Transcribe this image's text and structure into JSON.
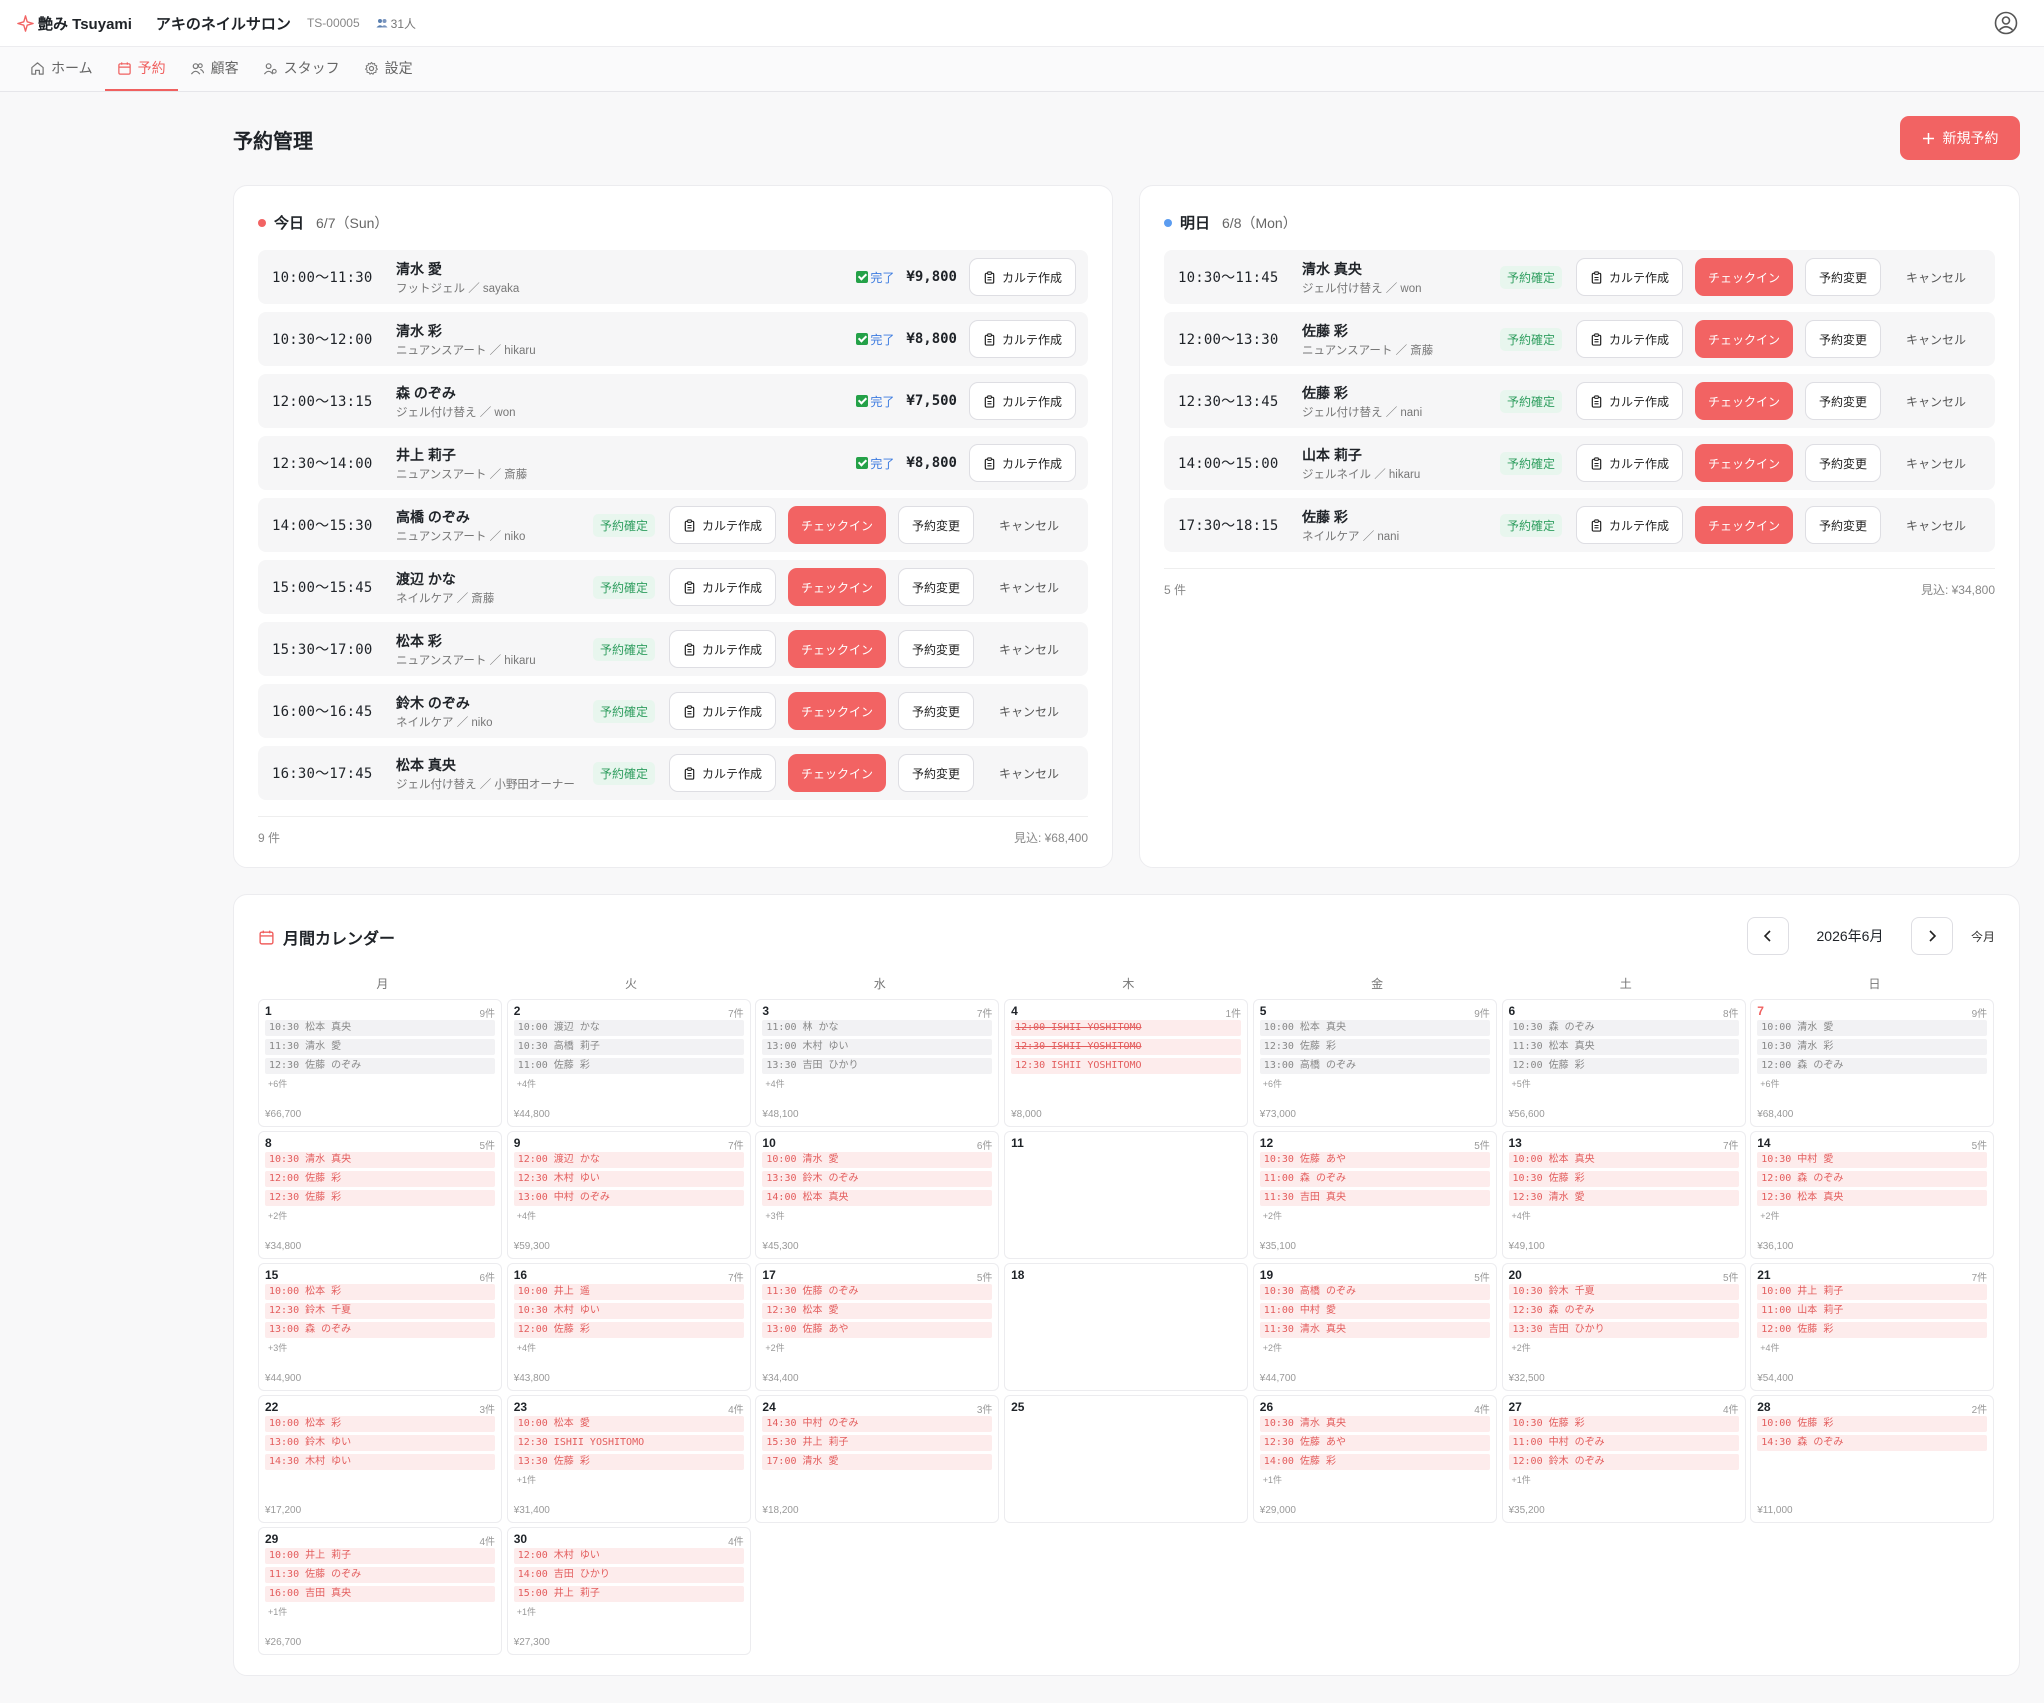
{
  "header": {
    "brand": "艶み Tsuyami",
    "shop_name": "アキのネイルサロン",
    "shop_id": "TS-00005",
    "staff_count": "31人"
  },
  "nav": {
    "tabs": [
      {
        "label": "ホーム",
        "icon": "home-icon"
      },
      {
        "label": "予約",
        "icon": "calendar-icon"
      },
      {
        "label": "顧客",
        "icon": "users-icon"
      },
      {
        "label": "スタッフ",
        "icon": "staff-icon"
      },
      {
        "label": "設定",
        "icon": "gear-icon"
      }
    ],
    "active": "予約"
  },
  "page": {
    "title": "予約管理",
    "new_button": "新規予約"
  },
  "labels": {
    "status_confirmed": "予約確定",
    "status_done": "完了",
    "karte": "カルテ作成",
    "checkin": "チェックイン",
    "change": "予約変更",
    "cancel": "キャンセル"
  },
  "today": {
    "label": "今日",
    "date": "6/7（Sun）",
    "count": "9 件",
    "forecast": "見込: ¥68,400",
    "rows": [
      {
        "time": "10:00〜11:30",
        "name": "清水 愛",
        "menu": "フットジェル ／ sayaka",
        "done": true,
        "price": "¥9,800"
      },
      {
        "time": "10:30〜12:00",
        "name": "清水 彩",
        "menu": "ニュアンスアート ／ hikaru",
        "done": true,
        "price": "¥8,800"
      },
      {
        "time": "12:00〜13:15",
        "name": "森 のぞみ",
        "menu": "ジェル付け替え ／ won",
        "done": true,
        "price": "¥7,500"
      },
      {
        "time": "12:30〜14:00",
        "name": "井上 莉子",
        "menu": "ニュアンスアート ／ 斎藤",
        "done": true,
        "price": "¥8,800"
      },
      {
        "time": "14:00〜15:30",
        "name": "高橋 のぞみ",
        "menu": "ニュアンスアート ／ niko",
        "done": false
      },
      {
        "time": "15:00〜15:45",
        "name": "渡辺 かな",
        "menu": "ネイルケア ／ 斎藤",
        "done": false
      },
      {
        "time": "15:30〜17:00",
        "name": "松本 彩",
        "menu": "ニュアンスアート ／ hikaru",
        "done": false
      },
      {
        "time": "16:00〜16:45",
        "name": "鈴木 のぞみ",
        "menu": "ネイルケア ／ niko",
        "done": false
      },
      {
        "time": "16:30〜17:45",
        "name": "松本 真央",
        "menu": "ジェル付け替え ／ 小野田オーナー",
        "done": false
      }
    ]
  },
  "tomorrow": {
    "label": "明日",
    "date": "6/8（Mon）",
    "count": "5 件",
    "forecast": "見込: ¥34,800",
    "rows": [
      {
        "time": "10:30〜11:45",
        "name": "清水 真央",
        "menu": "ジェル付け替え ／ won"
      },
      {
        "time": "12:00〜13:30",
        "name": "佐藤 彩",
        "menu": "ニュアンスアート ／ 斎藤"
      },
      {
        "time": "12:30〜13:45",
        "name": "佐藤 彩",
        "menu": "ジェル付け替え ／ nani"
      },
      {
        "time": "14:00〜15:00",
        "name": "山本 莉子",
        "menu": "ジェルネイル ／ hikaru"
      },
      {
        "time": "17:30〜18:15",
        "name": "佐藤 彩",
        "menu": "ネイルケア ／ nani"
      }
    ]
  },
  "calendar": {
    "title": "月間カレンダー",
    "month": "2026年6月",
    "today_label": "今月",
    "weekdays": [
      "月",
      "火",
      "水",
      "木",
      "金",
      "土",
      "日"
    ],
    "days": [
      {
        "d": "1",
        "c": "9件",
        "ev": [
          "10:30 松本 真央",
          "11:30 清水 愛",
          "12:30 佐藤 のぞみ"
        ],
        "more": "+6件",
        "tot": "¥66,700",
        "tone": "grey"
      },
      {
        "d": "2",
        "c": "7件",
        "ev": [
          "10:00 渡辺 かな",
          "10:30 高橋 莉子",
          "11:00 佐藤 彩"
        ],
        "more": "+4件",
        "tot": "¥44,800",
        "tone": "grey"
      },
      {
        "d": "3",
        "c": "7件",
        "ev": [
          "11:00 林 かな",
          "13:00 木村 ゆい",
          "13:30 吉田 ひかり"
        ],
        "more": "+4件",
        "tot": "¥48,100",
        "tone": "grey"
      },
      {
        "d": "4",
        "c": "1件",
        "ev": [
          "12:00 ISHII YOSHITOMO",
          "12:30 ISHII YOSHITOMO",
          "12:30 ISHII YOSHITOMO"
        ],
        "strike": [
          0,
          1
        ],
        "more": "",
        "tot": "¥8,000",
        "tone": "pink"
      },
      {
        "d": "5",
        "c": "9件",
        "ev": [
          "10:00 松本 真央",
          "12:30 佐藤 彩",
          "13:00 高橋 のぞみ"
        ],
        "more": "+6件",
        "tot": "¥73,000",
        "tone": "grey"
      },
      {
        "d": "6",
        "c": "8件",
        "ev": [
          "10:30 森 のぞみ",
          "11:30 松本 真央",
          "12:00 佐藤 彩"
        ],
        "more": "+5件",
        "tot": "¥56,600",
        "tone": "grey"
      },
      {
        "d": "7",
        "c": "9件",
        "ev": [
          "10:00 清水 愛",
          "10:30 清水 彩",
          "12:00 森 のぞみ"
        ],
        "more": "+6件",
        "tot": "¥68,400",
        "tone": "grey",
        "sun": true
      },
      {
        "d": "8",
        "c": "5件",
        "ev": [
          "10:30 清水 真央",
          "12:00 佐藤 彩",
          "12:30 佐藤 彩"
        ],
        "more": "+2件",
        "tot": "¥34,800",
        "tone": "pink"
      },
      {
        "d": "9",
        "c": "7件",
        "ev": [
          "12:00 渡辺 かな",
          "12:30 木村 ゆい",
          "13:00 中村 のぞみ"
        ],
        "more": "+4件",
        "tot": "¥59,300",
        "tone": "pink"
      },
      {
        "d": "10",
        "c": "6件",
        "ev": [
          "10:00 清水 愛",
          "13:30 鈴木 のぞみ",
          "14:00 松本 真央"
        ],
        "more": "+3件",
        "tot": "¥45,300",
        "tone": "pink"
      },
      {
        "d": "11",
        "c": "",
        "ev": [],
        "more": "",
        "tot": "",
        "tone": "pink"
      },
      {
        "d": "12",
        "c": "5件",
        "ev": [
          "10:30 佐藤 あや",
          "11:00 森 のぞみ",
          "11:30 吉田 真央"
        ],
        "more": "+2件",
        "tot": "¥35,100",
        "tone": "pink"
      },
      {
        "d": "13",
        "c": "7件",
        "ev": [
          "10:00 松本 真央",
          "10:30 佐藤 彩",
          "12:30 清水 愛"
        ],
        "more": "+4件",
        "tot": "¥49,100",
        "tone": "pink"
      },
      {
        "d": "14",
        "c": "5件",
        "ev": [
          "10:30 中村 愛",
          "12:00 森 のぞみ",
          "12:30 松本 真央"
        ],
        "more": "+2件",
        "tot": "¥36,100",
        "tone": "pink"
      },
      {
        "d": "15",
        "c": "6件",
        "ev": [
          "10:00 松本 彩",
          "12:30 鈴木 千夏",
          "13:00 森 のぞみ"
        ],
        "more": "+3件",
        "tot": "¥44,900",
        "tone": "pink"
      },
      {
        "d": "16",
        "c": "7件",
        "ev": [
          "10:00 井上 遥",
          "10:30 木村 ゆい",
          "12:00 佐藤 彩"
        ],
        "more": "+4件",
        "tot": "¥43,800",
        "tone": "pink"
      },
      {
        "d": "17",
        "c": "5件",
        "ev": [
          "11:30 佐藤 のぞみ",
          "12:30 松本 愛",
          "13:00 佐藤 あや"
        ],
        "more": "+2件",
        "tot": "¥34,400",
        "tone": "pink"
      },
      {
        "d": "18",
        "c": "",
        "ev": [],
        "more": "",
        "tot": "",
        "tone": "pink"
      },
      {
        "d": "19",
        "c": "5件",
        "ev": [
          "10:30 高橋 のぞみ",
          "11:00 中村 愛",
          "11:30 清水 真央"
        ],
        "more": "+2件",
        "tot": "¥44,700",
        "tone": "pink"
      },
      {
        "d": "20",
        "c": "5件",
        "ev": [
          "10:30 鈴木 千夏",
          "12:30 森 のぞみ",
          "13:30 吉田 ひかり"
        ],
        "more": "+2件",
        "tot": "¥32,500",
        "tone": "pink"
      },
      {
        "d": "21",
        "c": "7件",
        "ev": [
          "10:00 井上 莉子",
          "11:00 山本 莉子",
          "12:00 佐藤 彩"
        ],
        "more": "+4件",
        "tot": "¥54,400",
        "tone": "pink"
      },
      {
        "d": "22",
        "c": "3件",
        "ev": [
          "10:00 松本 彩",
          "13:00 鈴木 ゆい",
          "14:30 木村 ゆい"
        ],
        "more": "",
        "tot": "¥17,200",
        "tone": "pink"
      },
      {
        "d": "23",
        "c": "4件",
        "ev": [
          "10:00 松本 愛",
          "12:30 ISHII YOSHITOMO",
          "13:30 佐藤 彩"
        ],
        "more": "+1件",
        "tot": "¥31,400",
        "tone": "pink"
      },
      {
        "d": "24",
        "c": "3件",
        "ev": [
          "14:30 中村 のぞみ",
          "15:30 井上 莉子",
          "17:00 清水 愛"
        ],
        "more": "",
        "tot": "¥18,200",
        "tone": "pink"
      },
      {
        "d": "25",
        "c": "",
        "ev": [],
        "more": "",
        "tot": "",
        "tone": "pink"
      },
      {
        "d": "26",
        "c": "4件",
        "ev": [
          "10:30 清水 真央",
          "12:30 佐藤 あや",
          "14:00 佐藤 彩"
        ],
        "more": "+1件",
        "tot": "¥29,000",
        "tone": "pink"
      },
      {
        "d": "27",
        "c": "4件",
        "ev": [
          "10:30 佐藤 彩",
          "11:00 中村 のぞみ",
          "12:00 鈴木 のぞみ"
        ],
        "more": "+1件",
        "tot": "¥35,200",
        "tone": "pink"
      },
      {
        "d": "28",
        "c": "2件",
        "ev": [
          "10:00 佐藤 彩",
          "14:30 森 のぞみ"
        ],
        "more": "",
        "tot": "¥11,000",
        "tone": "pink"
      },
      {
        "d": "29",
        "c": "4件",
        "ev": [
          "10:00 井上 莉子",
          "11:30 佐藤 のぞみ",
          "16:00 吉田 真央"
        ],
        "more": "+1件",
        "tot": "¥26,700",
        "tone": "pink"
      },
      {
        "d": "30",
        "c": "4件",
        "ev": [
          "12:00 木村 ゆい",
          "14:00 吉田 ひかり",
          "15:00 井上 莉子"
        ],
        "more": "+1件",
        "tot": "¥27,300",
        "tone": "pink"
      }
    ]
  },
  "colors": {
    "accent": "#f26363",
    "today_dot": "#f26363",
    "tomorrow_dot": "#5b9cf0",
    "confirmed": "#2f9e5f",
    "done": "#3c7be0"
  }
}
